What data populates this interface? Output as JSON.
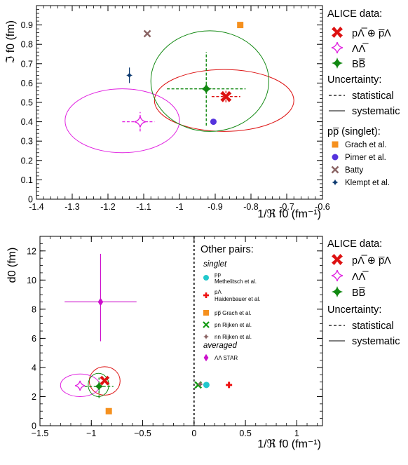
{
  "chart_data": [
    {
      "type": "scatter",
      "xlabel": "1/ℜ f0 (fm⁻¹)",
      "ylabel": "ℑ f0 (fm)",
      "xlim": [
        -1.4,
        -0.6
      ],
      "ylim": [
        0,
        1.0
      ],
      "xticks": [
        "-1.4",
        "-1.3",
        "-1.2",
        "-1.1",
        "-1",
        "-0.9",
        "-0.8",
        "-0.7",
        "-0.6"
      ],
      "yticks": [
        "0",
        "0.1",
        "0.2",
        "0.3",
        "0.4",
        "0.5",
        "0.6",
        "0.7",
        "0.8",
        "0.9"
      ],
      "grid": false,
      "legend_position": "right",
      "legend_heading_1": "ALICE data:",
      "legend_heading_2": "Uncertainty:",
      "legend_stat": "statistical",
      "legend_syst": "systematic",
      "legend_heading_3": "pp̅ (singlet):",
      "series": [
        {
          "name": "pΛ̅ ⊕ p̅Λ",
          "color": "#dd1111",
          "x": -0.87,
          "y": 0.53,
          "xerr": [
            0.04,
            0.04
          ],
          "yerr": [
            0.03,
            0.03
          ],
          "ellipse": {
            "x_range": [
              -1.07,
              -0.68
            ],
            "y_range": [
              0.35,
              0.67
            ]
          }
        },
        {
          "name": "ΛΛ̅",
          "color": "#e020e0",
          "x": -1.11,
          "y": 0.4,
          "xerr": [
            0.05,
            0.04
          ],
          "yerr": [
            0.05,
            0.05
          ],
          "ellipse": {
            "x_range": [
              -1.32,
              -1.0
            ],
            "y_range": [
              0.24,
              0.57
            ]
          }
        },
        {
          "name": "BB̅",
          "color": "#118811",
          "x": -0.925,
          "y": 0.57,
          "xerr": [
            0.11,
            0.11
          ],
          "yerr": [
            0.19,
            0.19
          ],
          "ellipse": {
            "x_range": [
              -1.08,
              -0.75
            ],
            "y_range": [
              0.35,
              0.87
            ]
          }
        }
      ],
      "references": [
        {
          "name": "Grach et al.",
          "color": "#f5901e",
          "marker": "square",
          "x": -0.83,
          "y": 0.9
        },
        {
          "name": "Pirner et al.",
          "color": "#5533dd",
          "marker": "circle",
          "x": -0.905,
          "y": 0.4
        },
        {
          "name": "Batty",
          "color": "#8a6464",
          "marker": "x-cross",
          "x": -1.09,
          "y": 0.855
        },
        {
          "name": "Klempt et al.",
          "color": "#0d3a70",
          "marker": "star-cross",
          "x": -1.14,
          "y": 0.64,
          "yerr": [
            0.04,
            0.04
          ]
        }
      ]
    },
    {
      "type": "scatter",
      "xlabel": "1/ℜ f0 (fm⁻¹)",
      "ylabel": "d0 (fm)",
      "xlim": [
        -1.5,
        1.25
      ],
      "ylim": [
        0,
        13
      ],
      "xticks": [
        "−1.5",
        "−1",
        "−0.5",
        "0",
        "0.5",
        "1"
      ],
      "yticks": [
        "0",
        "2",
        "4",
        "6",
        "8",
        "10",
        "12"
      ],
      "grid": false,
      "legend_position": "right",
      "legend_heading_1": "ALICE data:",
      "legend_heading_2": "Uncertainty:",
      "legend_stat": "statistical",
      "legend_syst": "systematic",
      "inset_legend_title": "Other pairs:",
      "inset_group_1": "singlet",
      "inset_group_2": "averaged",
      "series": [
        {
          "name": "pΛ̅ ⊕ p̅Λ",
          "color": "#dd1111",
          "x": -0.87,
          "y": 3.1,
          "ellipse": {
            "x_range": [
              -1.02,
              -0.72
            ],
            "y_range": [
              2.1,
              4.05
            ]
          }
        },
        {
          "name": "ΛΛ̅",
          "color": "#e020e0",
          "x": -1.11,
          "y": 2.75,
          "ellipse": {
            "x_range": [
              -1.3,
              -0.92
            ],
            "y_range": [
              2.0,
              3.55
            ]
          }
        },
        {
          "name": "BB̅",
          "color": "#118811",
          "x": -0.925,
          "y": 2.7,
          "xerr": [
            0.14,
            0.14
          ],
          "yerr": [
            0.8,
            0.6
          ],
          "ellipse": {
            "x_range": [
              -1.03,
              -0.83
            ],
            "y_range": [
              2.0,
              3.6
            ]
          }
        }
      ],
      "references": [
        {
          "name": "pp\nMethelitsch et al.",
          "color": "#22c8cc",
          "marker": "circle",
          "x": 0.12,
          "y": 2.8
        },
        {
          "name": "pΛ\nHaidenbauer et al.",
          "color": "#ee1111",
          "marker": "plus",
          "x": 0.34,
          "y": 2.8
        },
        {
          "name": "pp̅ Grach et al.",
          "color": "#f5901e",
          "marker": "square",
          "x": -0.83,
          "y": 1.0
        },
        {
          "name": "pn Rijken et al.",
          "color": "#119911",
          "marker": "x-cross",
          "x": 0.04,
          "y": 2.8
        },
        {
          "name": "nn Rijken et al.",
          "color": "#8a6464",
          "marker": "star-cross",
          "x": 0.06,
          "y": 2.85
        },
        {
          "name": "ΛΛ STAR",
          "color": "#cc10cc",
          "marker": "diamond",
          "x": -0.91,
          "y": 8.5,
          "xerr": [
            0.35,
            0.35
          ],
          "yerr": [
            2.7,
            3.3
          ]
        }
      ]
    }
  ]
}
